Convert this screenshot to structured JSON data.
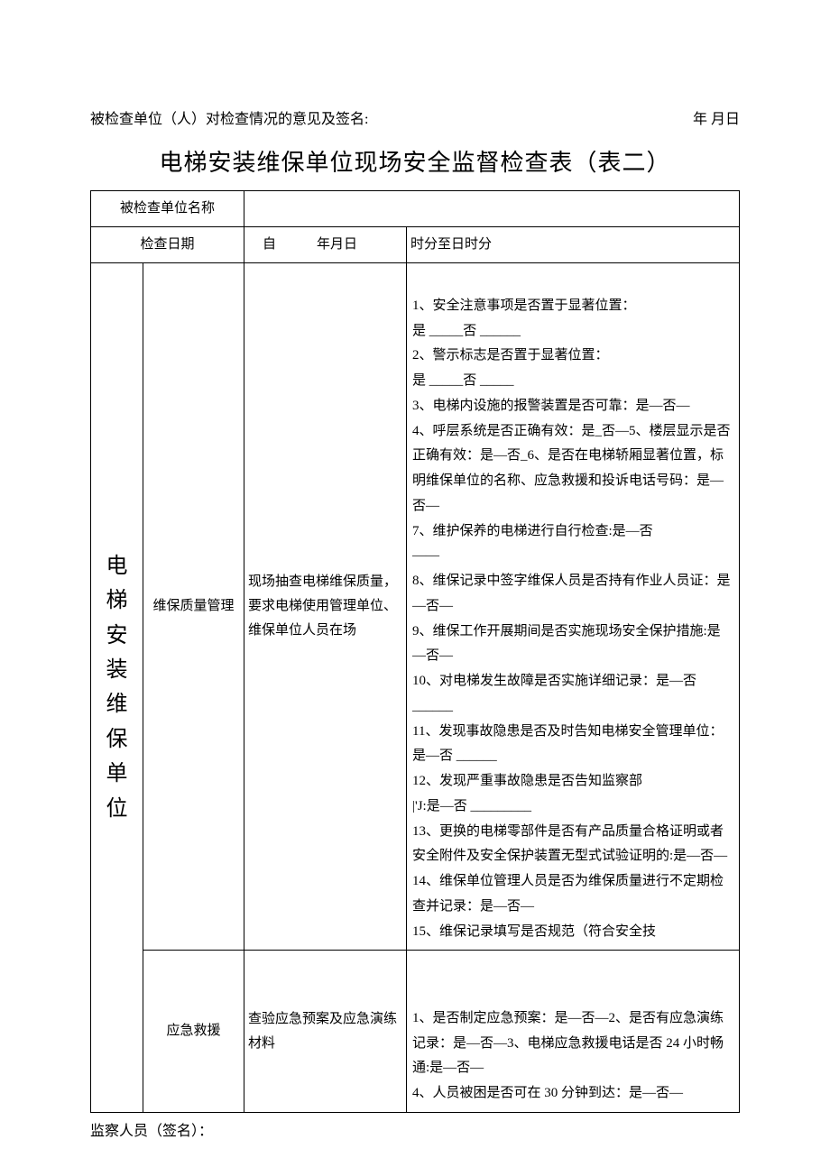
{
  "header": {
    "left_text": "被检查单位（人）对检查情况的意见及签名:",
    "right_text": "年 月日"
  },
  "title": "电梯安装维保单位现场安全监督检查表（表二）",
  "row_unit_label": "被检查单位名称",
  "row_unit_value": "",
  "row_date_label": "检查日期",
  "row_date_from": "自　　　年月日",
  "row_date_to": "时分至日时分",
  "side_label": "电梯安装维保单位",
  "section1": {
    "name": "维保质量管理",
    "method": "现场抽查电梯维保质量，要求电梯使用管理单位、维保单位人员在场",
    "items_text": "1、安全注意事项是否置于显著位置：\n是 _____否 ______\n2、警示标志是否置于显著位置：\n是 _____否 _____\n3、电梯内设施的报警装置是否可靠：是—否—\n4、呼层系统是否正确有效：是_否—5、楼层显示是否正确有效：是—否_6、是否在电梯轿厢显著位置，标明维保单位的名称、应急救援和投诉电话号码：是—否—\n7、维护保养的电梯进行自行检查:是—否\n——\n8、维保记录中签字维保人员是否持有作业人员证：是—否—\n9、维保工作开展期间是否实施现场安全保护措施:是—否—\n10、对电梯发生故障是否实施详细记录：是—否 ______\n11、发现事故隐患是否及时告知电梯安全管理单位：是—否  ______\n12、发现严重事故隐患是否告知监察部\n|'J:是—否  _________\n13、更换的电梯零部件是否有产品质量合格证明或者安全附件及安全保护装置无型式试验证明的:是—否—\n14、维保单位管理人员是否为维保质量进行不定期检查并记录：是—否—\n15、维保记录填写是否规范（符合安全技"
  },
  "section2": {
    "name": "应急救援",
    "method": "查验应急预案及应急演练材料",
    "items_text": "1、是否制定应急预案：是—否—2、是否有应急演练记录：是—否—3、电梯应急救援电话是否 24 小时畅通:是—否—\n4、人员被困是否可在 30 分钟到达：是—否—"
  },
  "footer": "监察人员（签名）："
}
